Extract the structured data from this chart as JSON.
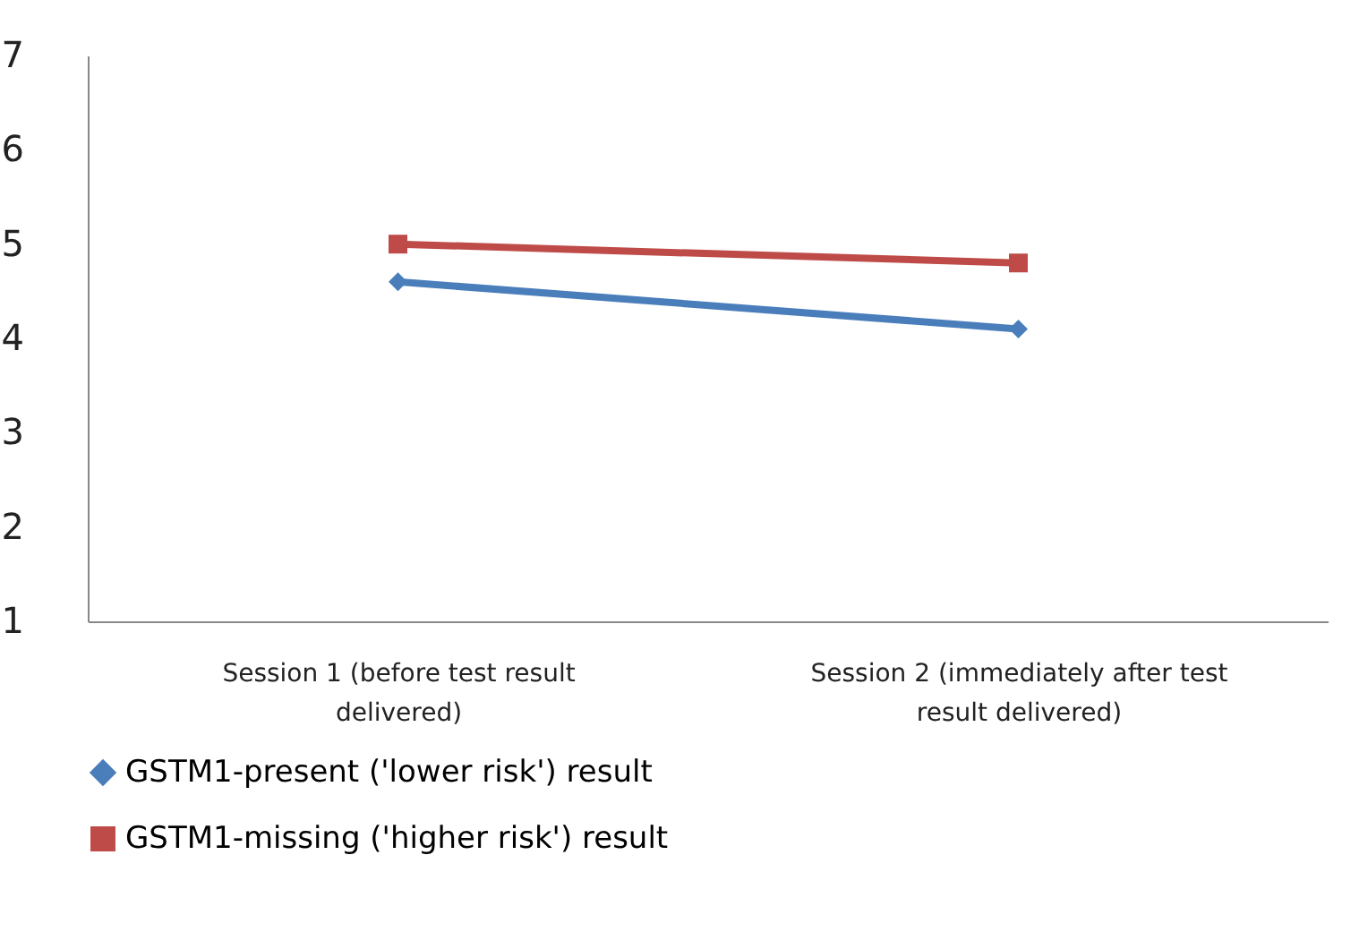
{
  "chart_data": {
    "type": "line",
    "categories": [
      "Session 1 (before test result delivered)",
      "Session 2 (immediately after test result delivered)"
    ],
    "series": [
      {
        "name": "GSTM1-present ('lower risk') result",
        "color": "#4a7ebb",
        "marker": "diamond",
        "values": [
          4.6,
          4.1
        ]
      },
      {
        "name": "GSTM1-missing ('higher risk') result",
        "color": "#be4b48",
        "marker": "square",
        "values": [
          5.0,
          4.8
        ]
      }
    ],
    "ylim": [
      1,
      7
    ],
    "yticks": [
      1,
      2,
      3,
      4,
      5,
      6,
      7
    ],
    "grid": false,
    "legend": "bottom",
    "line_style": "solid"
  }
}
